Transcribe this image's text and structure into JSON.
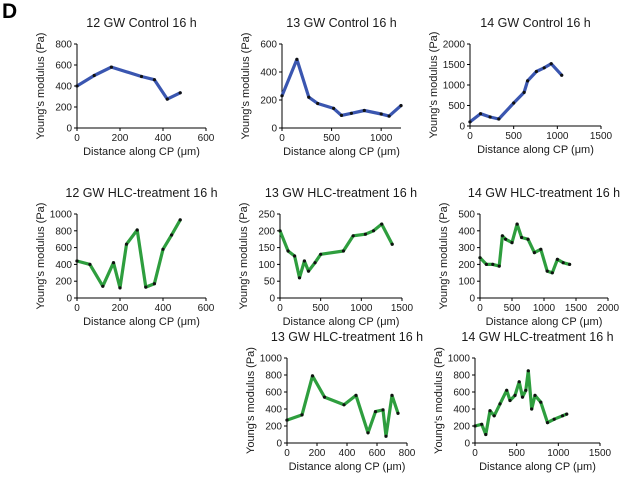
{
  "panel_label": "D",
  "chart_data": [
    {
      "type": "line",
      "title": "12 GW Control 16 h",
      "xlabel": "Distance along CP (μm)",
      "ylabel": "Young's modulus (Pa)",
      "xlim": [
        0,
        600
      ],
      "ylim": [
        0,
        800
      ],
      "xticks": [
        0,
        200,
        400,
        600
      ],
      "yticks": [
        0,
        200,
        400,
        600,
        800
      ],
      "color": "#3a56b0",
      "series": [
        {
          "x": [
            0,
            80,
            160,
            300,
            360,
            420,
            480
          ],
          "y": [
            400,
            500,
            580,
            490,
            460,
            275,
            335
          ]
        }
      ]
    },
    {
      "type": "line",
      "title": "13 GW Control 16 h",
      "xlabel": "Distance along CP (μm)",
      "ylabel": "Young's modulus (Pa)",
      "xlim": [
        0,
        1200
      ],
      "ylim": [
        0,
        600
      ],
      "xticks": [
        0,
        500,
        1000
      ],
      "yticks": [
        0,
        200,
        400,
        600
      ],
      "color": "#3a56b0",
      "series": [
        {
          "x": [
            0,
            150,
            270,
            360,
            520,
            600,
            700,
            830,
            1000,
            1080,
            1200
          ],
          "y": [
            230,
            490,
            220,
            175,
            140,
            90,
            105,
            125,
            100,
            85,
            160
          ]
        }
      ]
    },
    {
      "type": "line",
      "title": "14 GW Control 16 h",
      "xlabel": "Distance along CP (μm)",
      "ylabel": "Young's modulus (Pa)",
      "xlim": [
        0,
        1500
      ],
      "ylim": [
        0,
        2000
      ],
      "xticks": [
        0,
        500,
        1000,
        1500
      ],
      "yticks": [
        0,
        500,
        1000,
        1500,
        2000
      ],
      "color": "#3a56b0",
      "series": [
        {
          "x": [
            0,
            120,
            230,
            330,
            500,
            620,
            660,
            760,
            850,
            930,
            1050
          ],
          "y": [
            100,
            300,
            220,
            170,
            560,
            820,
            1100,
            1330,
            1420,
            1520,
            1240
          ]
        }
      ]
    },
    {
      "type": "line",
      "title": "12 GW HLC-treatment 16 h",
      "xlabel": "Distance along CP (μm)",
      "ylabel": "Young's modulus (Pa)",
      "xlim": [
        0,
        600
      ],
      "ylim": [
        0,
        1000
      ],
      "xticks": [
        0,
        200,
        400,
        600
      ],
      "yticks": [
        0,
        200,
        400,
        600,
        800,
        1000
      ],
      "color": "#2e9e3e",
      "series": [
        {
          "x": [
            0,
            60,
            120,
            170,
            200,
            230,
            280,
            320,
            360,
            400,
            440,
            480
          ],
          "y": [
            440,
            400,
            140,
            420,
            120,
            640,
            810,
            130,
            170,
            580,
            750,
            930
          ]
        }
      ]
    },
    {
      "type": "line",
      "title": "13 GW HLC-treatment 16 h",
      "xlabel": "Distance along CP (μm)",
      "ylabel": "Young's modulus (Pa)",
      "xlim": [
        0,
        1500
      ],
      "ylim": [
        0,
        250
      ],
      "xticks": [
        0,
        500,
        1000,
        1500
      ],
      "yticks": [
        0,
        50,
        100,
        150,
        200,
        250
      ],
      "color": "#2e9e3e",
      "series": [
        {
          "x": [
            0,
            100,
            180,
            240,
            300,
            350,
            430,
            500,
            780,
            900,
            1050,
            1150,
            1250,
            1380
          ],
          "y": [
            200,
            140,
            125,
            60,
            110,
            80,
            105,
            130,
            140,
            185,
            190,
            200,
            220,
            160
          ]
        }
      ]
    },
    {
      "type": "line",
      "title": "14 GW HLC-treatment 16 h",
      "xlabel": "Distance along CP (μm)",
      "ylabel": "Young's modulus (Pa)",
      "xlim": [
        0,
        2000
      ],
      "ylim": [
        0,
        500
      ],
      "xticks": [
        0,
        500,
        1000,
        1500,
        2000
      ],
      "yticks": [
        0,
        100,
        200,
        300,
        400,
        500
      ],
      "color": "#2e9e3e",
      "series": [
        {
          "x": [
            0,
            100,
            200,
            300,
            350,
            400,
            500,
            580,
            650,
            750,
            850,
            950,
            1050,
            1130,
            1210,
            1300,
            1400
          ],
          "y": [
            240,
            200,
            200,
            190,
            370,
            350,
            330,
            440,
            360,
            350,
            270,
            290,
            160,
            150,
            230,
            210,
            200
          ]
        }
      ]
    },
    {
      "type": "line",
      "title": "13 GW HLC-treatment 16 h",
      "xlabel": "Distance along CP (μm)",
      "ylabel": "Young's modulus (Pa)",
      "xlim": [
        0,
        800
      ],
      "ylim": [
        0,
        1000
      ],
      "xticks": [
        0,
        200,
        400,
        600,
        800
      ],
      "yticks": [
        0,
        200,
        400,
        600,
        800,
        1000
      ],
      "color": "#2e9e3e",
      "series": [
        {
          "x": [
            0,
            100,
            170,
            250,
            380,
            460,
            540,
            590,
            640,
            660,
            700,
            740
          ],
          "y": [
            270,
            330,
            790,
            540,
            450,
            560,
            120,
            370,
            390,
            80,
            560,
            350
          ]
        }
      ]
    },
    {
      "type": "line",
      "title": "14 GW HLC-treatment 16 h",
      "xlabel": "Distance along CP (μm)",
      "ylabel": "Young's modulus (Pa)",
      "xlim": [
        0,
        1500
      ],
      "ylim": [
        0,
        1000
      ],
      "xticks": [
        0,
        500,
        1000,
        1500
      ],
      "yticks": [
        0,
        200,
        400,
        600,
        800,
        1000
      ],
      "color": "#2e9e3e",
      "series": [
        {
          "x": [
            0,
            80,
            130,
            180,
            230,
            300,
            380,
            420,
            480,
            530,
            570,
            610,
            640,
            680,
            720,
            790,
            870,
            950,
            1050,
            1100
          ],
          "y": [
            200,
            220,
            100,
            380,
            320,
            460,
            620,
            500,
            560,
            720,
            540,
            620,
            850,
            400,
            560,
            480,
            240,
            280,
            320,
            340
          ]
        }
      ]
    }
  ]
}
